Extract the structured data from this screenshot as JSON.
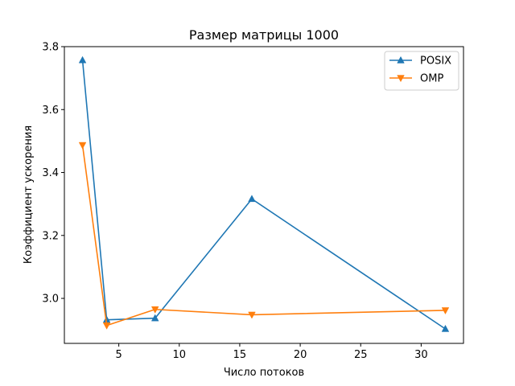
{
  "chart_data": {
    "type": "line",
    "title": "Размер матрицы 1000",
    "xlabel": "Число потоков",
    "ylabel": "Коэффициент ускорения",
    "xlim": [
      0.5,
      33.5
    ],
    "ylim": [
      2.857,
      3.8
    ],
    "x_ticks": [
      5,
      10,
      15,
      20,
      25,
      30
    ],
    "y_ticks": [
      3.0,
      3.2,
      3.4,
      3.6,
      3.8
    ],
    "legend_position": "upper right",
    "grid": false,
    "series": [
      {
        "name": "POSIX",
        "color": "#1f77b4",
        "marker": "triangle-up",
        "x": [
          2,
          4,
          8,
          16,
          32
        ],
        "y": [
          3.757,
          2.932,
          2.937,
          3.316,
          2.903
        ]
      },
      {
        "name": "OMP",
        "color": "#ff7f0e",
        "marker": "triangle-down",
        "x": [
          2,
          4,
          8,
          16,
          32
        ],
        "y": [
          3.487,
          2.914,
          2.965,
          2.948,
          2.962
        ]
      }
    ]
  }
}
